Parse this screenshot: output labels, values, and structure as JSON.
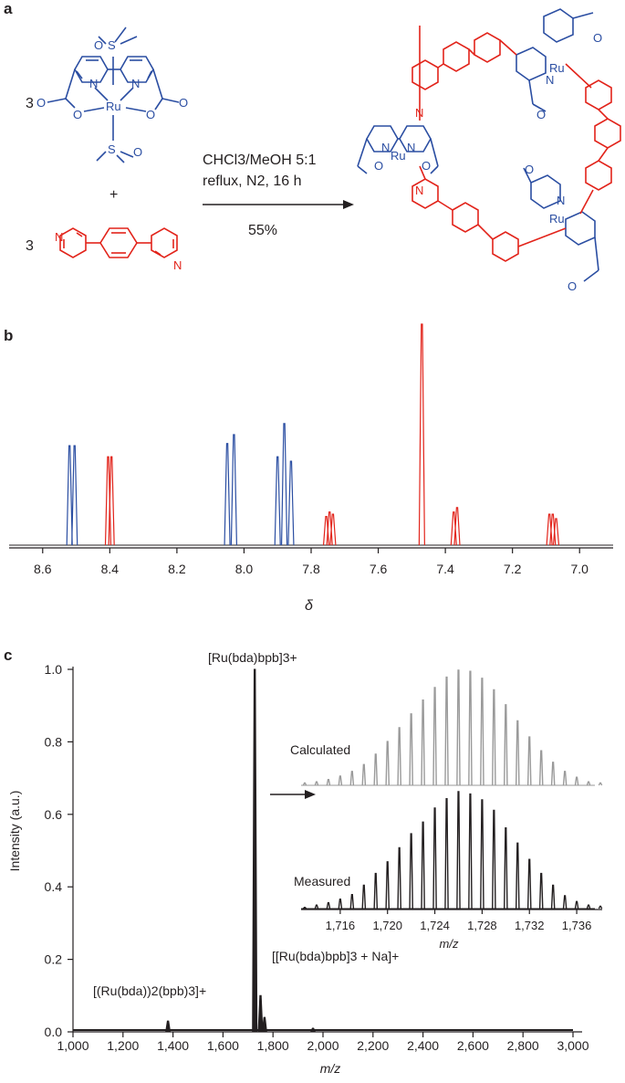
{
  "colors": {
    "bda": "#2b4ea2",
    "bpb": "#e2231a",
    "text": "#231f20",
    "calculated": "#9a9a9a"
  },
  "panel_a": {
    "label": "a",
    "coef_1": "3",
    "coef_2": "3",
    "plus": "+",
    "conditions_solvent": "CHCl3/MeOH 5:1",
    "conditions_reflux": "reflux, N2, 16 h",
    "yield": "55%",
    "atom_ru": "Ru",
    "atom_n": "N",
    "atom_o": "O",
    "atom_s": "S"
  },
  "panel_b": {
    "label": "b",
    "xlabel": "δ",
    "x_ticks": [
      "8.6",
      "8.4",
      "8.2",
      "8.0",
      "7.8",
      "7.6",
      "7.4",
      "7.2",
      "7.0"
    ]
  },
  "panel_c": {
    "label": "c",
    "ylabel": "Intensity (a.u.)",
    "xlabel": "m/z",
    "x_ticks": [
      "1,000",
      "1,200",
      "1,400",
      "1,600",
      "1,800",
      "2,000",
      "2,200",
      "2,400",
      "2,600",
      "2,800",
      "3,000"
    ],
    "y_ticks": [
      "0.0",
      "0.2",
      "0.4",
      "0.6",
      "0.8",
      "1.0"
    ],
    "peak_main": "[Ru(bda)bpb]3+",
    "peak_dimer": "[(Ru(bda))2(bpb)3]+",
    "peak_na": "[[Ru(bda)bpb]3 + Na]+",
    "inset_calculated": "Calculated",
    "inset_measured": "Measured",
    "inset_x_ticks": [
      "1,716",
      "1,720",
      "1,724",
      "1,728",
      "1,732",
      "1,736"
    ],
    "inset_xlabel": "m/z"
  },
  "chart_data": [
    {
      "type": "line",
      "panel": "b",
      "xlabel": "δ",
      "xlim": [
        8.7,
        6.9
      ],
      "x_ticks": [
        8.6,
        8.4,
        8.2,
        8.0,
        7.8,
        7.6,
        7.4,
        7.2,
        7.0
      ],
      "series": [
        {
          "color": "#2b4ea2",
          "peaks": [
            [
              8.52,
              0.45
            ],
            [
              8.505,
              0.45
            ],
            [
              8.05,
              0.46
            ],
            [
              8.03,
              0.5
            ],
            [
              7.9,
              0.4
            ],
            [
              7.88,
              0.55
            ],
            [
              7.86,
              0.38
            ]
          ]
        },
        {
          "color": "#e2231a",
          "peaks": [
            [
              8.405,
              0.4
            ],
            [
              8.395,
              0.4
            ],
            [
              7.755,
              0.13
            ],
            [
              7.745,
              0.15
            ],
            [
              7.735,
              0.14
            ],
            [
              7.47,
              1.0
            ],
            [
              7.375,
              0.15
            ],
            [
              7.365,
              0.17
            ],
            [
              7.09,
              0.14
            ],
            [
              7.08,
              0.14
            ],
            [
              7.07,
              0.12
            ]
          ]
        }
      ]
    },
    {
      "type": "line",
      "panel": "c",
      "xlabel": "m/z",
      "ylabel": "Intensity (a.u.)",
      "xlim": [
        1000,
        3000
      ],
      "ylim": [
        0,
        1.0
      ],
      "peaks": [
        [
          1380,
          0.03
        ],
        [
          1727,
          1.0
        ],
        [
          1750,
          0.1
        ],
        [
          1766,
          0.04
        ],
        [
          1960,
          0.01
        ]
      ]
    },
    {
      "type": "bar",
      "panel": "c-inset",
      "xlabel": "m/z",
      "series": [
        {
          "name": "Calculated",
          "x": [
            1713,
            1714,
            1715,
            1716,
            1717,
            1718,
            1719,
            1720,
            1721,
            1722,
            1723,
            1724,
            1725,
            1726,
            1727,
            1728,
            1729,
            1730,
            1731,
            1732,
            1733,
            1734,
            1735,
            1736,
            1737,
            1738
          ],
          "values": [
            0.02,
            0.03,
            0.05,
            0.08,
            0.12,
            0.18,
            0.27,
            0.38,
            0.5,
            0.62,
            0.74,
            0.85,
            0.94,
            1.0,
            0.99,
            0.93,
            0.83,
            0.7,
            0.56,
            0.42,
            0.3,
            0.2,
            0.12,
            0.07,
            0.03,
            0.02
          ]
        },
        {
          "name": "Measured",
          "x": [
            1713,
            1714,
            1715,
            1716,
            1717,
            1718,
            1719,
            1720,
            1721,
            1722,
            1723,
            1724,
            1725,
            1726,
            1727,
            1728,
            1729,
            1730,
            1731,
            1732,
            1733,
            1734,
            1735,
            1736,
            1737,
            1738
          ],
          "values": [
            0.01,
            0.03,
            0.05,
            0.08,
            0.12,
            0.2,
            0.3,
            0.4,
            0.52,
            0.64,
            0.74,
            0.86,
            0.94,
            1.0,
            0.98,
            0.93,
            0.84,
            0.69,
            0.56,
            0.42,
            0.3,
            0.2,
            0.11,
            0.06,
            0.03,
            0.02
          ]
        }
      ]
    }
  ]
}
